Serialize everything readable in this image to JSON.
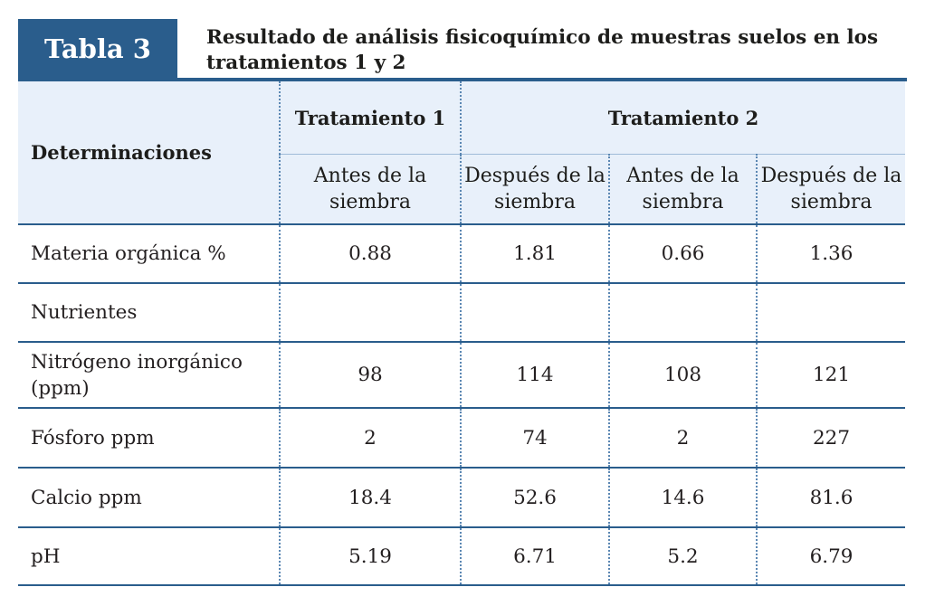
{
  "header": {
    "tag": "Tabla 3",
    "title": "Resultado de análisis fisicoquímico de muestras suelos en los tratamientos 1 y 2"
  },
  "table": {
    "corner": "Determinaciones",
    "groups": [
      "Tratamiento 1",
      "Tratamiento 2"
    ],
    "subheaders": [
      "Antes de la siembra",
      "Después de la siembra",
      "Antes de la siembra",
      "Después de la siembra"
    ],
    "rows": [
      {
        "label": "Materia orgánica %",
        "values": [
          "0.88",
          "1.81",
          "0.66",
          "1.36"
        ]
      },
      {
        "label": "Nutrientes",
        "values": [
          "",
          "",
          "",
          ""
        ]
      },
      {
        "label": "Nitrógeno inorgánico (ppm)",
        "values": [
          "98",
          "114",
          "108",
          "121"
        ]
      },
      {
        "label": "Fósforo ppm",
        "values": [
          "2",
          "74",
          "2",
          "227"
        ]
      },
      {
        "label": "Calcio ppm",
        "values": [
          "18.4",
          "52.6",
          "14.6",
          "81.6"
        ]
      },
      {
        "label": "pH",
        "values": [
          "5.19",
          "6.71",
          "5.2",
          "6.79"
        ]
      }
    ]
  },
  "colors": {
    "accent": "#2a5d8c",
    "header_bg": "#e8f0fa"
  }
}
